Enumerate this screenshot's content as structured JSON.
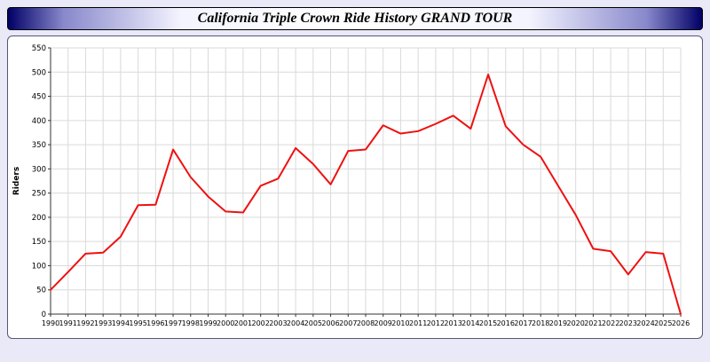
{
  "header": {
    "title": "California Triple Crown Ride History GRAND TOUR"
  },
  "chart_data": {
    "type": "line",
    "title": "California Triple Crown Ride History GRAND TOUR",
    "xlabel": "",
    "ylabel": "Riders",
    "ylim": [
      0,
      550
    ],
    "ytick_step": 50,
    "grid": true,
    "legend_position": "none",
    "x": [
      1990,
      1991,
      1992,
      1993,
      1994,
      1995,
      1996,
      1997,
      1998,
      1999,
      2000,
      2001,
      2002,
      2003,
      2004,
      2005,
      2006,
      2007,
      2008,
      2009,
      2010,
      2011,
      2012,
      2013,
      2014,
      2015,
      2016,
      2017,
      2018,
      2019,
      2020,
      2021,
      2022,
      2023,
      2024,
      2025,
      2026
    ],
    "series": [
      {
        "name": "Riders",
        "color": "#ee1111",
        "values": [
          50,
          87,
          125,
          127,
          160,
          225,
          226,
          340,
          283,
          243,
          212,
          210,
          265,
          280,
          343,
          310,
          268,
          337,
          340,
          390,
          373,
          378,
          393,
          410,
          383,
          495,
          388,
          350,
          325,
          265,
          205,
          135,
          130,
          82,
          128,
          125,
          0
        ]
      }
    ]
  }
}
